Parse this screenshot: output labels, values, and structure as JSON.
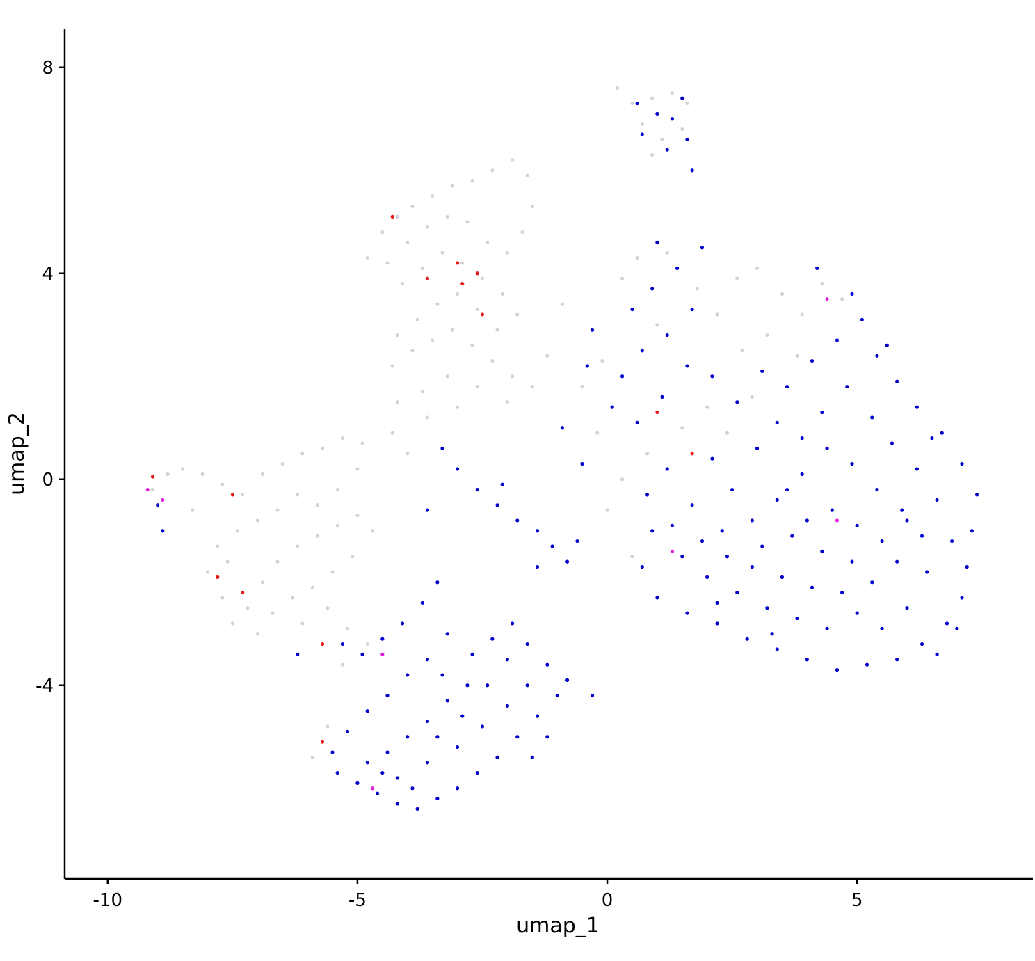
{
  "chart_data": {
    "type": "scatter",
    "x_label": "umap_1",
    "y_label": "umap_2",
    "xlim": [
      -10.86,
      8.52
    ],
    "ylim": [
      -7.76,
      8.74
    ],
    "xticks": [
      -10,
      -5,
      0,
      5
    ],
    "yticks": [
      -4,
      0,
      4,
      8
    ],
    "grid": false,
    "series": [
      {
        "color": "#d3d3d3",
        "x": [
          -4.8,
          -4.5,
          -4.2,
          -3.9,
          -3.5,
          -3.1,
          -2.7,
          -2.3,
          -1.9,
          -1.6,
          -1.5,
          -1.7,
          -2.0,
          -2.4,
          -2.8,
          -3.2,
          -3.6,
          -4.0,
          -4.4,
          -4.1,
          -3.7,
          -3.3,
          -2.9,
          -2.5,
          -2.1,
          -1.8,
          -2.2,
          -2.6,
          -3.0,
          -3.4,
          -3.8,
          -4.2,
          -4.3,
          -3.9,
          -3.5,
          -3.1,
          -2.7,
          -2.3,
          -1.9,
          -1.5,
          -2.0,
          -2.6,
          -3.2,
          -3.7,
          -4.2,
          -4.3,
          -4.0,
          -3.6,
          -3.0,
          -1.2,
          -9.1,
          -8.8,
          -8.5,
          -8.1,
          -7.7,
          -7.3,
          -6.9,
          -6.5,
          -6.1,
          -5.7,
          -5.3,
          -4.9,
          -5.0,
          -5.4,
          -5.8,
          -6.2,
          -6.6,
          -7.0,
          -7.4,
          -7.8,
          -8.0,
          -7.7,
          -7.5,
          -7.2,
          -6.9,
          -6.6,
          -6.2,
          -5.8,
          -5.4,
          -5.0,
          -4.7,
          -5.1,
          -5.5,
          -5.9,
          -6.3,
          -6.7,
          -7.0,
          -6.1,
          -5.6,
          -5.2,
          -4.8,
          -5.3,
          -5.6,
          -5.9,
          -7.6,
          -8.3,
          -0.5,
          -0.1,
          0.3,
          0.6,
          1.2,
          1.8,
          2.2,
          2.6,
          3.0,
          3.5,
          3.9,
          4.3,
          4.7,
          3.2,
          2.7,
          2.0,
          2.4,
          1.5,
          0.8,
          0.3,
          0.0,
          -0.2,
          -0.9,
          0.5,
          2.9,
          3.8,
          1.0,
          0.2,
          0.5,
          0.9,
          1.3,
          1.6,
          0.7,
          1.1,
          0.9,
          1.5
        ],
        "y": [
          4.3,
          4.8,
          5.1,
          5.3,
          5.5,
          5.7,
          5.8,
          6.0,
          6.2,
          5.9,
          5.3,
          4.8,
          4.4,
          4.6,
          5.0,
          5.1,
          4.9,
          4.6,
          4.2,
          3.8,
          4.1,
          4.4,
          4.2,
          3.9,
          3.6,
          3.2,
          2.9,
          3.3,
          3.6,
          3.4,
          3.1,
          2.8,
          2.2,
          2.5,
          2.7,
          2.9,
          2.6,
          2.3,
          2.0,
          1.8,
          1.5,
          1.8,
          2.0,
          1.7,
          1.5,
          0.9,
          0.5,
          1.2,
          1.4,
          2.4,
          -0.2,
          0.1,
          0.2,
          0.1,
          -0.1,
          -0.3,
          0.1,
          0.3,
          0.5,
          0.6,
          0.8,
          0.7,
          0.2,
          -0.2,
          -0.5,
          -0.3,
          -0.6,
          -0.8,
          -1.0,
          -1.3,
          -1.8,
          -2.3,
          -2.8,
          -2.5,
          -2.0,
          -1.6,
          -1.3,
          -1.1,
          -0.9,
          -0.7,
          -1.0,
          -1.5,
          -1.8,
          -2.1,
          -2.3,
          -2.6,
          -3.0,
          -2.8,
          -2.5,
          -2.9,
          -3.2,
          -3.6,
          -4.8,
          -5.4,
          -1.6,
          -0.6,
          1.8,
          2.3,
          3.9,
          4.3,
          4.4,
          3.7,
          3.2,
          3.9,
          4.1,
          3.6,
          3.2,
          3.8,
          3.5,
          2.8,
          2.5,
          1.4,
          0.9,
          1.0,
          0.5,
          0.0,
          -0.6,
          0.9,
          3.4,
          -1.5,
          1.6,
          2.4,
          3.0,
          7.6,
          7.3,
          7.4,
          7.5,
          7.3,
          6.9,
          6.6,
          6.3,
          6.8
        ]
      },
      {
        "color": "#0000cc",
        "x": [
          0.5,
          0.9,
          1.4,
          1.7,
          1.2,
          0.7,
          0.3,
          -0.3,
          0.1,
          0.6,
          1.1,
          1.6,
          2.1,
          2.6,
          3.1,
          3.6,
          4.1,
          4.6,
          5.1,
          5.4,
          5.8,
          6.2,
          6.7,
          7.1,
          7.4,
          7.3,
          7.2,
          7.1,
          6.8,
          6.3,
          5.8,
          5.2,
          4.6,
          4.0,
          3.4,
          2.8,
          2.2,
          1.6,
          1.0,
          0.7,
          0.9,
          0.8,
          1.2,
          1.7,
          2.1,
          2.5,
          3.0,
          3.4,
          3.9,
          4.3,
          4.8,
          5.3,
          5.7,
          6.2,
          6.6,
          6.9,
          6.4,
          6.0,
          5.5,
          5.0,
          4.4,
          3.8,
          3.2,
          2.6,
          2.0,
          1.5,
          1.3,
          1.9,
          2.4,
          2.9,
          3.5,
          4.1,
          4.7,
          5.3,
          5.8,
          6.3,
          5.9,
          5.4,
          4.9,
          4.4,
          3.9,
          3.4,
          2.9,
          2.3,
          3.1,
          3.7,
          4.3,
          4.9,
          5.5,
          6.0,
          4.5,
          4.0,
          3.6,
          5.0,
          6.5,
          5.6,
          4.9,
          4.2,
          1.9,
          1.0,
          -0.9,
          -0.5,
          -0.4,
          7.0,
          6.6,
          3.3,
          2.2,
          -3.0,
          -2.6,
          -2.2,
          -1.8,
          -1.4,
          -1.1,
          -0.8,
          -1.4,
          -0.6,
          -2.1,
          -3.3,
          -3.6,
          -5.3,
          -4.9,
          -4.5,
          -4.1,
          -3.7,
          -3.4,
          -3.2,
          -3.6,
          -4.0,
          -4.4,
          -4.8,
          -5.2,
          -5.5,
          -5.4,
          -5.0,
          -4.6,
          -4.2,
          -3.8,
          -3.4,
          -3.0,
          -2.6,
          -2.2,
          -1.8,
          -1.4,
          -1.0,
          -0.8,
          -1.2,
          -1.6,
          -2.0,
          -2.4,
          -2.8,
          -3.2,
          -3.6,
          -4.0,
          -4.4,
          -4.8,
          -4.2,
          -3.6,
          -3.0,
          -2.5,
          -2.0,
          -1.6,
          -1.9,
          -2.3,
          -2.7,
          -3.3,
          -2.9,
          -3.4,
          -3.9,
          -4.5,
          -1.2,
          -1.5,
          -6.2,
          -0.3,
          0.6,
          1.0,
          1.5,
          0.7,
          1.2,
          1.6,
          1.7,
          1.3,
          -9.0,
          -8.9
        ],
        "y": [
          3.3,
          3.7,
          4.1,
          3.3,
          2.8,
          2.5,
          2.0,
          2.9,
          1.4,
          1.1,
          1.6,
          2.2,
          2.0,
          1.5,
          2.1,
          1.8,
          2.3,
          2.7,
          3.1,
          2.4,
          1.9,
          1.4,
          0.9,
          0.3,
          -0.3,
          -1.0,
          -1.7,
          -2.3,
          -2.8,
          -3.2,
          -3.5,
          -3.6,
          -3.7,
          -3.5,
          -3.3,
          -3.1,
          -2.8,
          -2.6,
          -2.3,
          -1.7,
          -1.0,
          -0.3,
          0.2,
          -0.5,
          0.4,
          -0.2,
          0.6,
          1.1,
          0.8,
          1.3,
          1.8,
          1.2,
          0.7,
          0.2,
          -0.4,
          -1.2,
          -1.8,
          -2.5,
          -2.9,
          -2.6,
          -2.9,
          -2.7,
          -2.5,
          -2.2,
          -1.9,
          -1.5,
          -0.9,
          -1.2,
          -1.5,
          -1.7,
          -1.9,
          -2.1,
          -2.2,
          -2.0,
          -1.6,
          -1.1,
          -0.6,
          -0.2,
          0.3,
          0.6,
          0.1,
          -0.4,
          -0.8,
          -1.0,
          -1.3,
          -1.1,
          -1.4,
          -1.6,
          -1.2,
          -0.8,
          -0.6,
          -0.8,
          -0.2,
          -0.9,
          0.8,
          2.6,
          3.6,
          4.1,
          4.5,
          4.6,
          1.0,
          0.3,
          2.2,
          -2.9,
          -3.4,
          -3.0,
          -2.4,
          0.2,
          -0.2,
          -0.5,
          -0.8,
          -1.0,
          -1.3,
          -1.6,
          -1.7,
          -1.2,
          -0.1,
          0.6,
          -0.6,
          -3.2,
          -3.4,
          -3.1,
          -2.8,
          -2.4,
          -2.0,
          -3.0,
          -3.5,
          -3.8,
          -4.2,
          -4.5,
          -4.9,
          -5.3,
          -5.7,
          -5.9,
          -6.1,
          -6.3,
          -6.4,
          -6.2,
          -6.0,
          -5.7,
          -5.4,
          -5.0,
          -4.6,
          -4.2,
          -3.9,
          -3.6,
          -3.2,
          -3.5,
          -4.0,
          -4.0,
          -4.3,
          -4.7,
          -5.0,
          -5.3,
          -5.5,
          -5.8,
          -5.5,
          -5.2,
          -4.8,
          -4.4,
          -4.0,
          -2.8,
          -3.1,
          -3.4,
          -3.8,
          -4.6,
          -5.0,
          -6.0,
          -5.7,
          -5.0,
          -5.4,
          -3.4,
          -4.2,
          7.3,
          7.1,
          7.4,
          6.7,
          6.4,
          6.6,
          6.0,
          7.0,
          -0.5,
          -1.0
        ]
      },
      {
        "color": "#e41a1c",
        "x": [
          -4.3,
          -3.0,
          -2.9,
          -3.6,
          -2.6,
          -2.5,
          -7.5,
          -7.8,
          -5.7,
          -5.7,
          1.0,
          1.7,
          -9.1,
          -7.3
        ],
        "y": [
          5.1,
          4.2,
          3.8,
          3.9,
          4.0,
          3.2,
          -0.3,
          -1.9,
          -3.2,
          -5.1,
          1.3,
          0.5,
          0.05,
          -2.2
        ]
      },
      {
        "color": "#e020e0",
        "x": [
          -9.2,
          -8.9,
          4.4,
          1.3,
          -4.7,
          4.6,
          -4.5
        ],
        "y": [
          -0.2,
          -0.4,
          3.5,
          -1.4,
          -6.0,
          -0.8,
          -3.4
        ]
      }
    ]
  }
}
